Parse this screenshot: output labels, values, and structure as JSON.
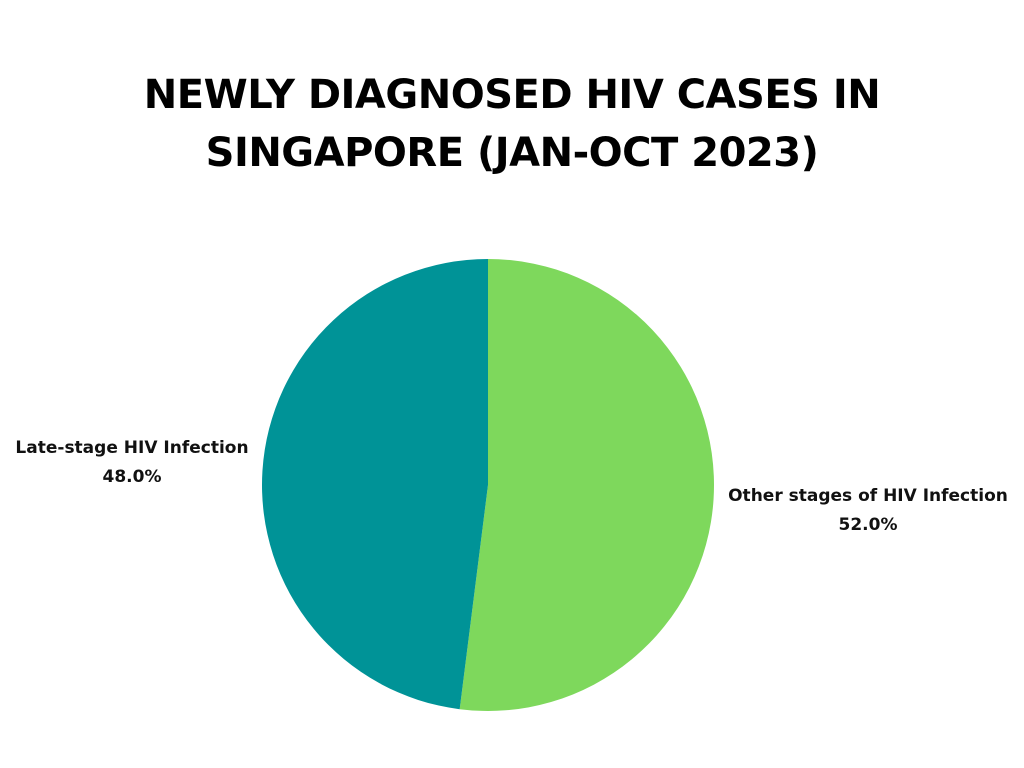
{
  "chart_data": {
    "type": "pie",
    "title_lines": [
      "NEWLY DIAGNOSED HIV CASES IN",
      "SINGAPORE (JAN-OCT 2023)"
    ],
    "slices": [
      {
        "label": "Other stages of HIV Infection",
        "value": 52.0,
        "value_label": "52.0%",
        "color": "#7ed85c"
      },
      {
        "label": "Late-stage HIV Infection",
        "value": 48.0,
        "value_label": "48.0%",
        "color": "#009397"
      }
    ]
  }
}
